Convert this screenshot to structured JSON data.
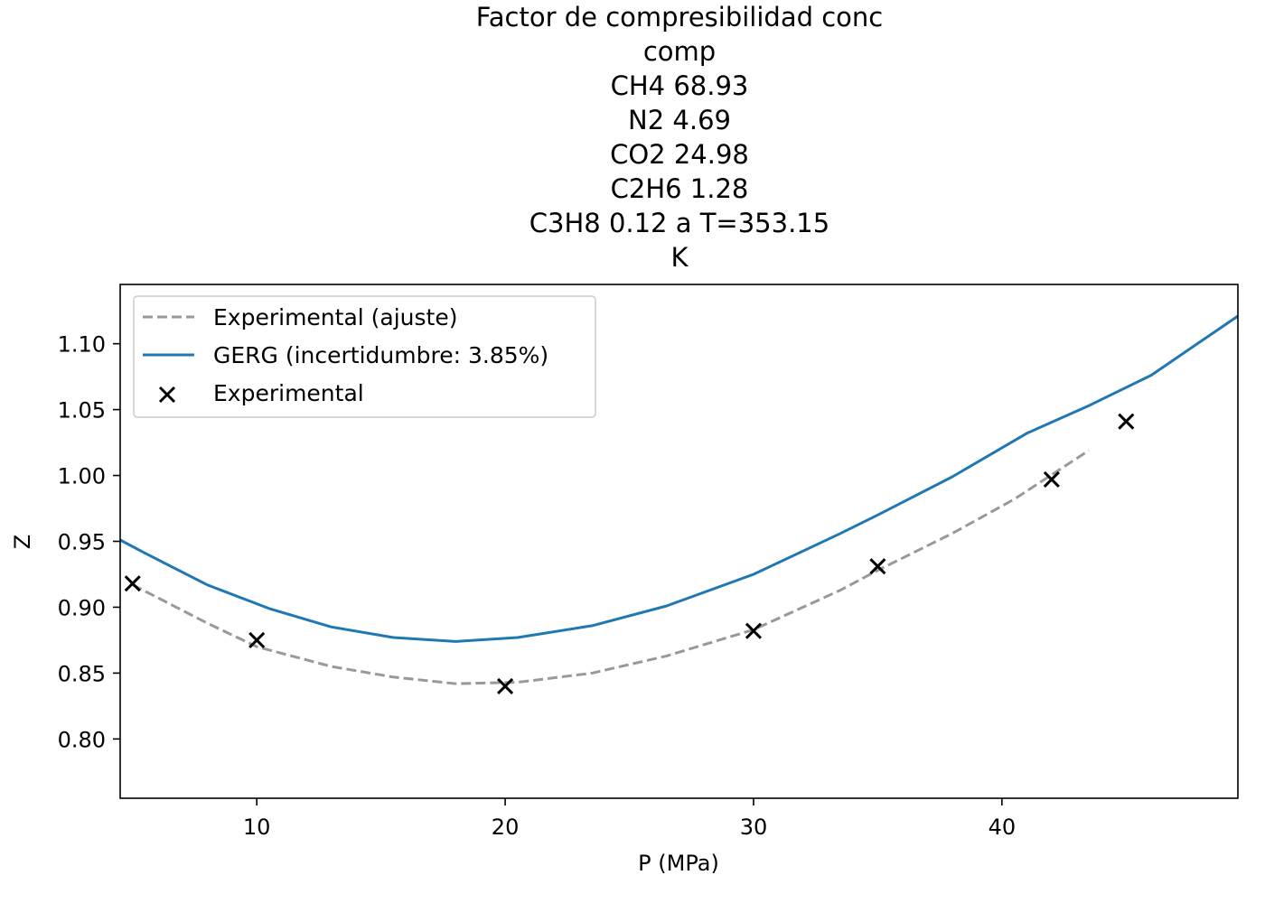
{
  "chart_data": {
    "type": "line",
    "title_lines": [
      "Factor de compresibilidad        conc",
      "comp",
      "CH4   68.93",
      "N2     4.69",
      "CO2   24.98",
      "C2H6   1.28",
      "C3H8   0.12 a T=353.15",
      "K"
    ],
    "xlabel": "P (MPa)",
    "ylabel": "Z",
    "xlim": [
      4.5,
      49.5
    ],
    "ylim": [
      0.755,
      1.145
    ],
    "xticks": [
      10,
      20,
      30,
      40
    ],
    "xtick_labels": [
      "10",
      "20",
      "30",
      "40"
    ],
    "yticks": [
      0.8,
      0.85,
      0.9,
      0.95,
      1.0,
      1.05,
      1.1
    ],
    "ytick_labels": [
      "0.80",
      "0.85",
      "0.90",
      "0.95",
      "1.00",
      "1.05",
      "1.10"
    ],
    "grid": false,
    "legend_position": "top-left",
    "series": [
      {
        "name": "Experimental (ajuste)",
        "kind": "line",
        "style": "dashed",
        "color": "#999999",
        "x": [
          5,
          8,
          10,
          13,
          15.5,
          18,
          20.5,
          23.5,
          26.5,
          30,
          33.5,
          35,
          38,
          40.5,
          43.5
        ],
        "y": [
          0.917,
          0.888,
          0.87,
          0.855,
          0.847,
          0.842,
          0.843,
          0.85,
          0.863,
          0.883,
          0.913,
          0.928,
          0.956,
          0.982,
          1.019
        ]
      },
      {
        "name": "GERG (incertidumbre: 3.85%)",
        "kind": "line",
        "style": "solid",
        "color": "#1f77b4",
        "x": [
          4.5,
          5.5,
          8,
          10.5,
          13,
          15.5,
          18,
          20.5,
          23.5,
          26.5,
          30,
          33.5,
          35,
          38,
          41,
          43.5,
          46,
          49.5
        ],
        "y": [
          0.951,
          0.941,
          0.917,
          0.899,
          0.885,
          0.877,
          0.874,
          0.877,
          0.886,
          0.901,
          0.925,
          0.956,
          0.97,
          0.999,
          1.032,
          1.053,
          1.076,
          1.121
        ]
      },
      {
        "name": "Experimental",
        "kind": "scatter",
        "marker": "x",
        "color": "#000000",
        "x": [
          5,
          10,
          20,
          30,
          35,
          42,
          45
        ],
        "y": [
          0.918,
          0.875,
          0.84,
          0.882,
          0.931,
          0.997,
          1.041
        ]
      }
    ]
  }
}
